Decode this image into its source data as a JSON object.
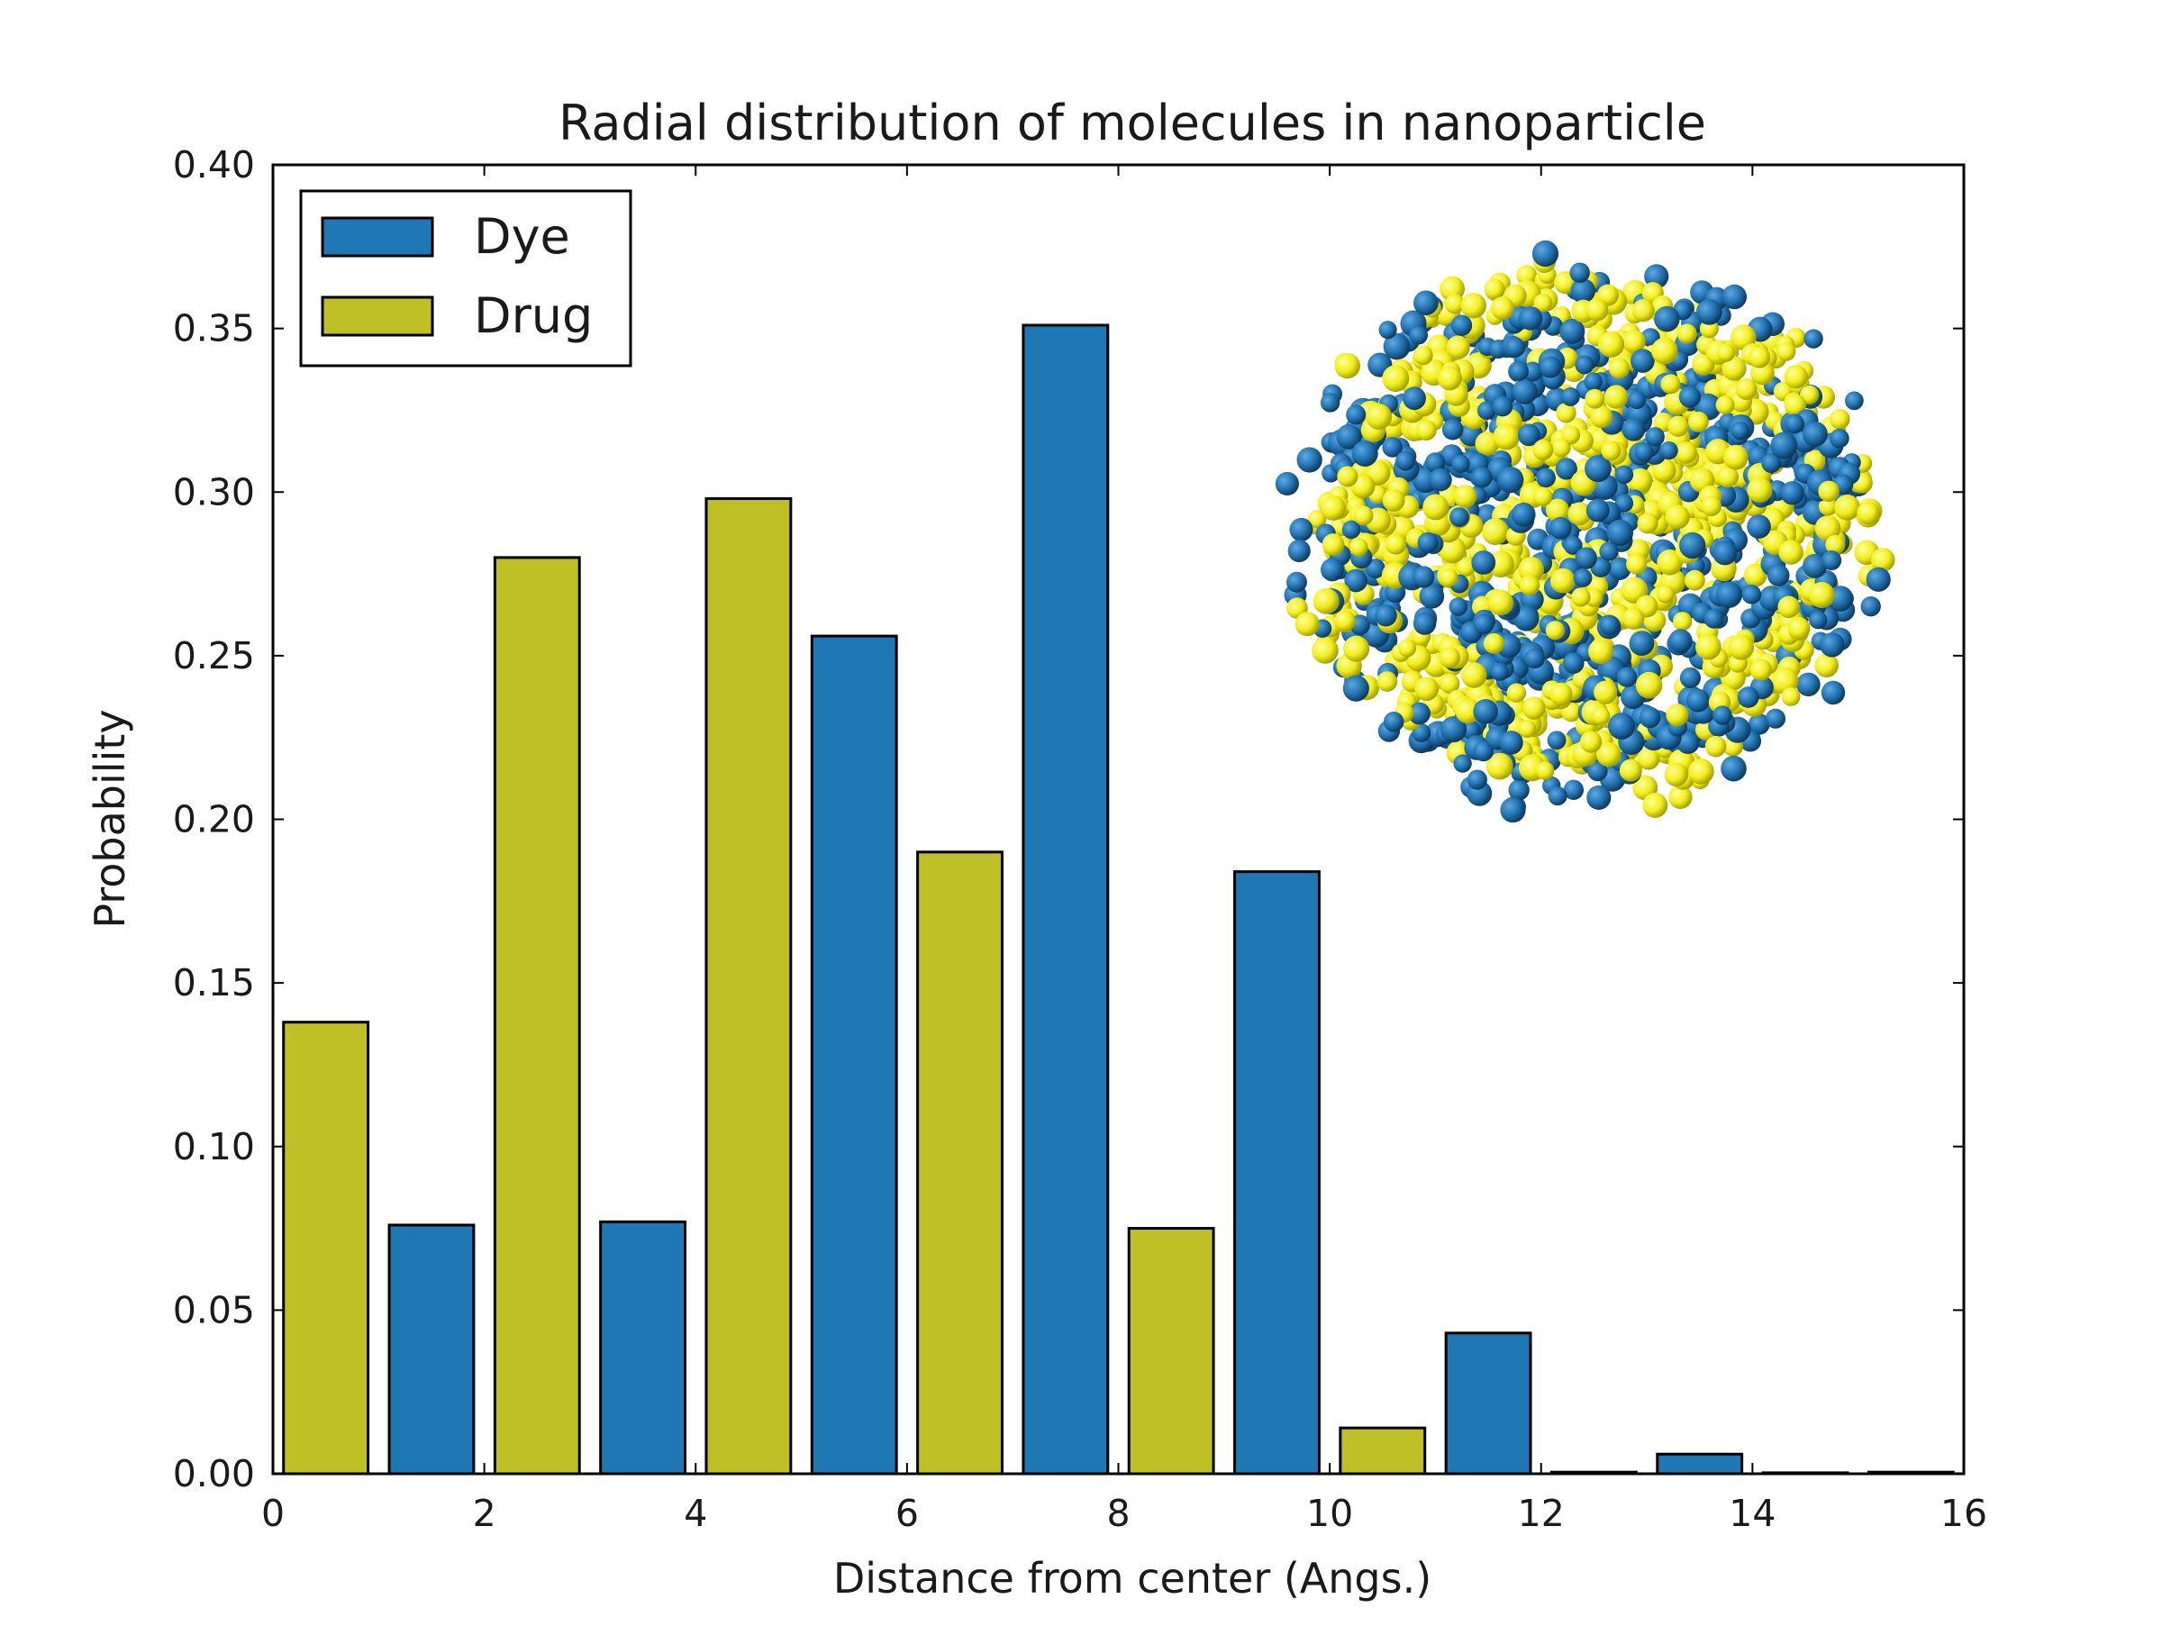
{
  "chart_data": {
    "type": "bar",
    "title": "Radial distribution of molecules in nanoparticle",
    "xlabel": "Distance from center (Angs.)",
    "ylabel": "Probability",
    "xlim": [
      0,
      16
    ],
    "ylim": [
      0,
      0.4
    ],
    "x_ticks": [
      "0",
      "2",
      "4",
      "6",
      "8",
      "10",
      "12",
      "14",
      "16"
    ],
    "y_ticks": [
      "0.00",
      "0.05",
      "0.10",
      "0.15",
      "0.20",
      "0.25",
      "0.30",
      "0.35",
      "0.40"
    ],
    "bar_width": 0.8,
    "grid": false,
    "legend_position": "upper-left",
    "series": [
      {
        "name": "Drug",
        "color": "#bfbf26",
        "x": [
          0.1,
          2.1,
          4.1,
          6.1,
          8.1,
          10.1,
          12.1,
          14.1
        ],
        "values": [
          0.138,
          0.28,
          0.298,
          0.19,
          0.075,
          0.014,
          0.0005,
          0.0003
        ]
      },
      {
        "name": "Dye",
        "color": "#1f77b4",
        "x": [
          1.1,
          3.1,
          5.1,
          7.1,
          9.1,
          11.1,
          13.1,
          15.1
        ],
        "values": [
          0.076,
          0.077,
          0.256,
          0.351,
          0.184,
          0.043,
          0.006,
          0.0005
        ]
      }
    ],
    "legend_order": [
      "Dye",
      "Drug"
    ],
    "inset_image": "nanoparticle-molecular-rendering"
  }
}
